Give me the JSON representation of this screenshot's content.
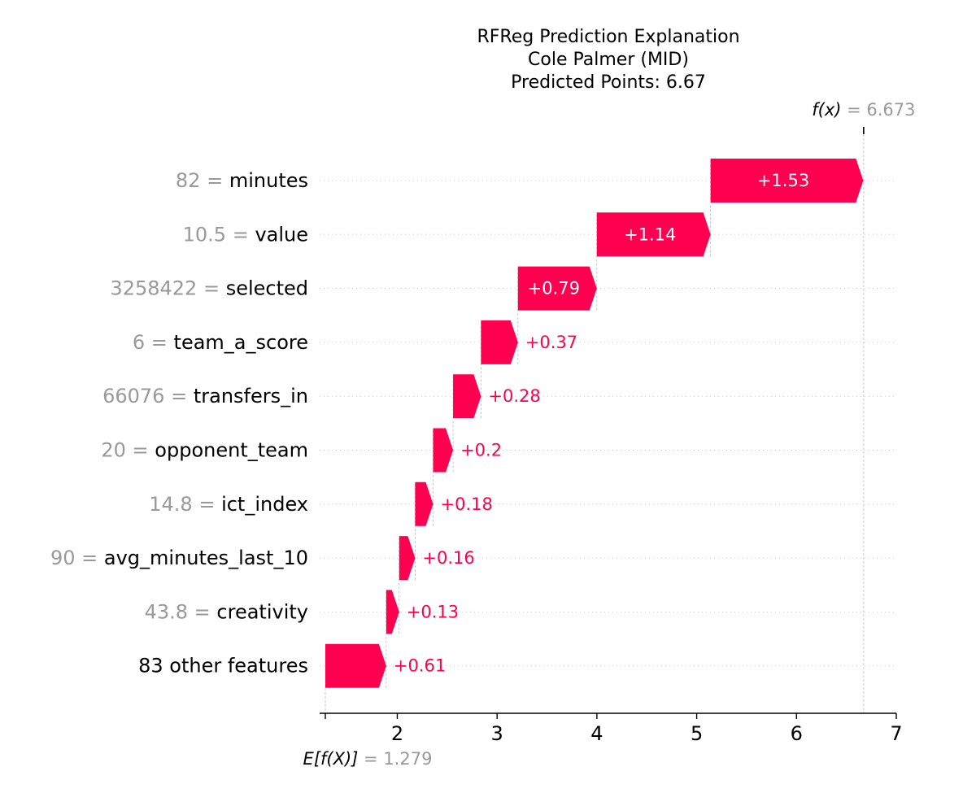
{
  "chart_data": {
    "type": "waterfall",
    "title_lines": [
      "RFReg Prediction Explanation",
      "Cole Palmer (MID)",
      "Predicted Points: 6.67"
    ],
    "base_value": 1.279,
    "output_value": 6.673,
    "base_label_prefix": "E[f(X)]",
    "base_label_value": "= 1.279",
    "output_label_prefix": "f(x)",
    "output_label_value": "= 6.673",
    "xlim": [
      1.279,
      7
    ],
    "xticks": [
      2,
      3,
      4,
      5,
      6,
      7
    ],
    "positive_color": "#ff0051",
    "feature_value_color": "#999999",
    "features": [
      {
        "value": "82",
        "name": "minutes",
        "contribution": 1.53,
        "label": "+1.53"
      },
      {
        "value": "10.5",
        "name": "value",
        "contribution": 1.14,
        "label": "+1.14"
      },
      {
        "value": "3258422",
        "name": "selected",
        "contribution": 0.79,
        "label": "+0.79"
      },
      {
        "value": "6",
        "name": "team_a_score",
        "contribution": 0.37,
        "label": "+0.37"
      },
      {
        "value": "66076",
        "name": "transfers_in",
        "contribution": 0.28,
        "label": "+0.28"
      },
      {
        "value": "20",
        "name": "opponent_team",
        "contribution": 0.2,
        "label": "+0.2"
      },
      {
        "value": "14.8",
        "name": "ict_index",
        "contribution": 0.18,
        "label": "+0.18"
      },
      {
        "value": "90",
        "name": "avg_minutes_last_10",
        "contribution": 0.16,
        "label": "+0.16"
      },
      {
        "value": "43.8",
        "name": "creativity",
        "contribution": 0.13,
        "label": "+0.13"
      },
      {
        "value": "",
        "name": "83 other features",
        "contribution": 0.61,
        "label": "+0.61"
      }
    ]
  }
}
